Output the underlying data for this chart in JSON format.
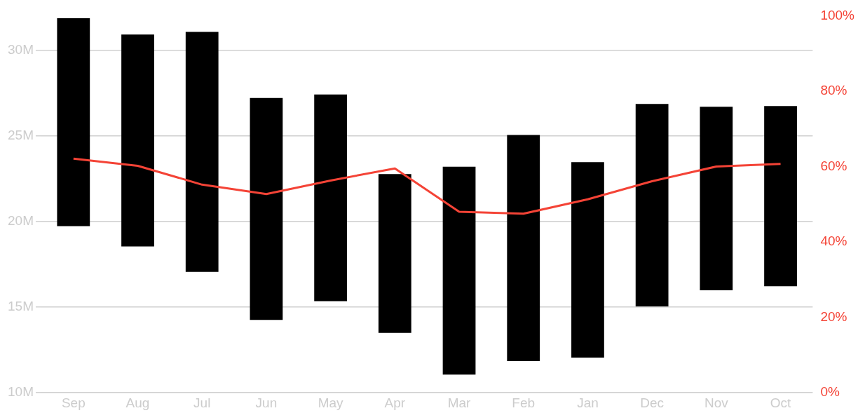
{
  "chart_data": {
    "type": "bar",
    "categories": [
      "Sep",
      "Aug",
      "Jul",
      "Jun",
      "May",
      "Apr",
      "Mar",
      "Feb",
      "Jan",
      "Dec",
      "Nov",
      "Oct"
    ],
    "series": [
      {
        "color": "#000000",
        "base": [
          19.72,
          18.54,
          17.05,
          14.25,
          15.35,
          13.5,
          11.06,
          11.85,
          12.05,
          15.04,
          15.98,
          16.22
        ],
        "values": [
          12.13,
          12.36,
          14.01,
          12.95,
          12.05,
          9.26,
          12.13,
          13.19,
          11.41,
          11.81,
          10.71,
          10.51
        ]
      },
      {
        "type": "line",
        "axis": "y2",
        "color": "#f44336",
        "values": [
          62.1,
          60.2,
          55.2,
          52.7,
          56.3,
          59.5,
          48.0,
          47.5,
          51.3,
          56.1,
          60.0,
          60.7
        ]
      }
    ],
    "ylim": [
      10,
      32
    ],
    "yticks": [
      {
        "value": 10,
        "label": "10M"
      },
      {
        "value": 15,
        "label": "15M"
      },
      {
        "value": 20,
        "label": "20M"
      },
      {
        "value": 25,
        "label": "25M"
      },
      {
        "value": 30,
        "label": "30M"
      }
    ],
    "y2lim": [
      0,
      100
    ],
    "y2ticks": [
      {
        "value": 0,
        "label": "0%"
      },
      {
        "value": 20,
        "label": "20%"
      },
      {
        "value": 40,
        "label": "40%"
      },
      {
        "value": 60,
        "label": "60%"
      },
      {
        "value": 80,
        "label": "80%"
      },
      {
        "value": 100,
        "label": "100%"
      }
    ],
    "grid": "y",
    "legend": false,
    "marker": "none",
    "line_style": "solid"
  }
}
